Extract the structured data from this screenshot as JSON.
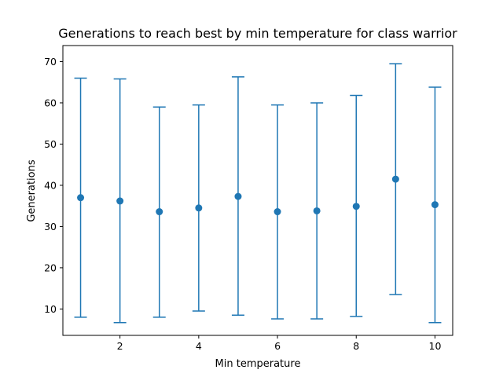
{
  "chart_data": {
    "type": "scatter",
    "title": "Generations to reach best by min temperature for class warrior",
    "xlabel": "Min temperature",
    "ylabel": "Generations",
    "x": [
      1,
      2,
      3,
      4,
      5,
      6,
      7,
      8,
      9,
      10
    ],
    "y": [
      37.0,
      36.2,
      33.6,
      34.5,
      37.3,
      33.6,
      33.8,
      34.9,
      41.5,
      35.3
    ],
    "error_lower": [
      8.0,
      6.7,
      8.0,
      9.5,
      8.5,
      7.6,
      7.6,
      8.2,
      13.5,
      6.7
    ],
    "error_upper": [
      66.0,
      65.8,
      59.0,
      59.5,
      66.3,
      59.5,
      60.0,
      61.8,
      69.5,
      63.8
    ],
    "xlim": [
      0.55,
      10.45
    ],
    "ylim": [
      3.6,
      73.9
    ],
    "xticks": [
      2,
      4,
      6,
      8,
      10
    ],
    "yticks": [
      10,
      20,
      30,
      40,
      50,
      60,
      70
    ],
    "grid": false,
    "color": "#1f77b4"
  }
}
